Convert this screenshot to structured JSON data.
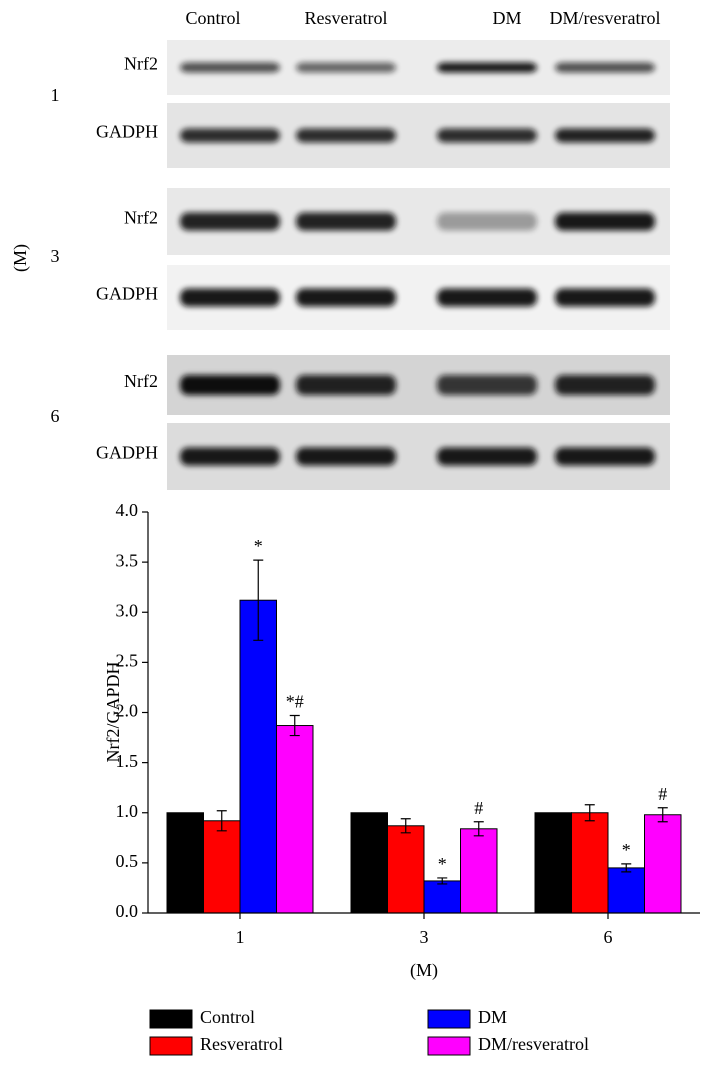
{
  "blot": {
    "columns": [
      "Control",
      "Resveratrol",
      "DM",
      "DM/resveratrol"
    ],
    "axis_label": "(M)",
    "panels": [
      {
        "month": "1",
        "rows": [
          "Nrf2",
          "GADPH"
        ]
      },
      {
        "month": "3",
        "rows": [
          "Nrf2",
          "GADPH"
        ]
      },
      {
        "month": "6",
        "rows": [
          "Nrf2",
          "GADPH"
        ]
      }
    ]
  },
  "chart_data": {
    "type": "bar",
    "y_label": "Nrf2/GAPDH",
    "x_label": "(M)",
    "categories": [
      "1",
      "3",
      "6"
    ],
    "series": [
      {
        "name": "Control",
        "color": "#000000",
        "values": [
          1.0,
          1.0,
          1.0
        ]
      },
      {
        "name": "Resveratrol",
        "color": "#ff0000",
        "values": [
          0.92,
          0.87,
          1.0
        ],
        "errors": [
          0.1,
          0.07,
          0.08
        ]
      },
      {
        "name": "DM",
        "color": "#0000ff",
        "values": [
          3.12,
          0.32,
          0.45
        ],
        "errors": [
          0.4,
          0.03,
          0.04
        ],
        "labels": [
          "*",
          "*",
          "*"
        ]
      },
      {
        "name": "DM/resveratrol",
        "color": "#ff00ff",
        "values": [
          1.87,
          0.84,
          0.98
        ],
        "errors": [
          0.1,
          0.07,
          0.07
        ],
        "labels": [
          "*#",
          "#",
          "#"
        ]
      }
    ],
    "ylim": [
      0,
      4
    ],
    "yticks": [
      {
        "value": 0,
        "label": "0.0"
      },
      {
        "value": 0.5,
        "label": "0.5"
      },
      {
        "value": 1,
        "label": "1.0"
      },
      {
        "value": 1.5,
        "label": "1.5"
      },
      {
        "value": 2,
        "label": "2.0"
      },
      {
        "value": 2.5,
        "label": "2.5"
      },
      {
        "value": 3,
        "label": "3.0"
      },
      {
        "value": 3.5,
        "label": "3.5"
      },
      {
        "value": 4,
        "label": "4.0"
      }
    ]
  }
}
